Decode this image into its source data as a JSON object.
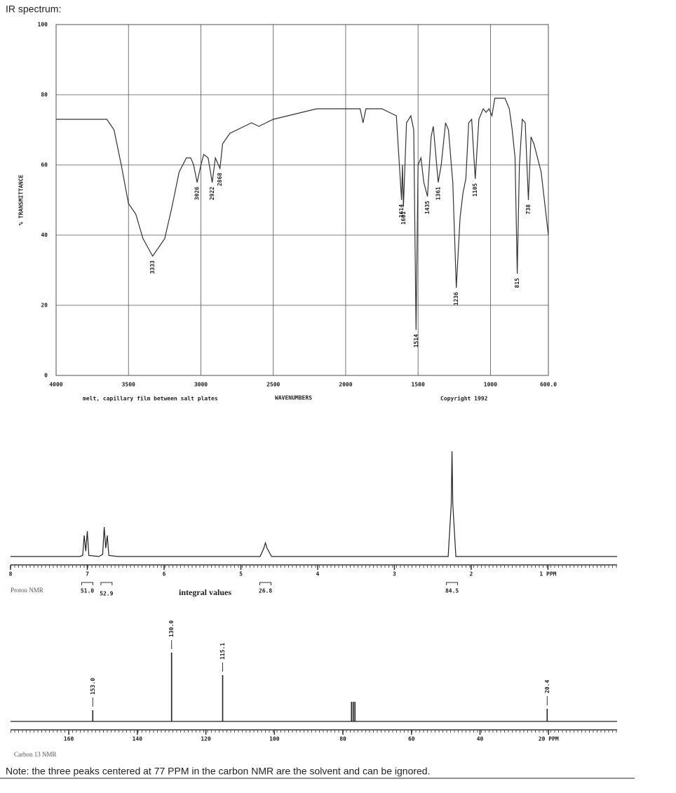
{
  "note": "Note: the three peaks centered at 77 PPM in the carbon NMR are the solvent and can be ignored.",
  "chart_data": [
    {
      "type": "line",
      "title": "IR spectrum:",
      "x_label": "WAVENUMBERS",
      "y_label": "% TRANSMITTANCE",
      "notes": [
        "melt, capillary film between salt plates",
        "Copyright 1992"
      ],
      "xlim": [
        4000,
        600
      ],
      "ylim": [
        0,
        100
      ],
      "xticks": [
        4000,
        3500,
        3000,
        2500,
        2000,
        1500,
        1000,
        {
          "value": 600,
          "label": "600.0"
        }
      ],
      "yticks": [
        0,
        20,
        40,
        60,
        80,
        100
      ],
      "grid": true,
      "color": "#333333",
      "x": [
        4000,
        3800,
        3650,
        3600,
        3550,
        3500,
        3450,
        3400,
        3333,
        3250,
        3200,
        3150,
        3100,
        3070,
        3050,
        3026,
        3000,
        2980,
        2950,
        2922,
        2900,
        2868,
        2850,
        2800,
        2700,
        2650,
        2600,
        2500,
        2400,
        2300,
        2200,
        2100,
        2000,
        1900,
        1880,
        1860,
        1750,
        1700,
        1650,
        1614,
        1608,
        1601,
        1580,
        1550,
        1530,
        1514,
        1500,
        1480,
        1460,
        1435,
        1410,
        1395,
        1361,
        1340,
        1310,
        1290,
        1260,
        1236,
        1210,
        1190,
        1170,
        1150,
        1130,
        1105,
        1080,
        1050,
        1030,
        1010,
        990,
        970,
        940,
        900,
        870,
        850,
        830,
        815,
        800,
        780,
        760,
        738,
        720,
        700,
        650,
        600
      ],
      "values": [
        73,
        73,
        73,
        70,
        60,
        49,
        46,
        39,
        34,
        39,
        48,
        58,
        62,
        62,
        60,
        55,
        60,
        63,
        62,
        55,
        62,
        59,
        66,
        69,
        71,
        72,
        71,
        73,
        74,
        75,
        76,
        76,
        76,
        76,
        72,
        76,
        76,
        75,
        74,
        50,
        60,
        48,
        72,
        74,
        70,
        13,
        60,
        62,
        55,
        51,
        68,
        71,
        55,
        60,
        72,
        70,
        55,
        25,
        45,
        52,
        56,
        72,
        73,
        56,
        73,
        76,
        75,
        76,
        74,
        79,
        79,
        79,
        76,
        70,
        62,
        29,
        60,
        73,
        72,
        50,
        68,
        66,
        58,
        40
      ],
      "peaks": [
        3333,
        3026,
        2922,
        2868,
        1614,
        1601,
        1514,
        1435,
        1361,
        1236,
        1105,
        815,
        738
      ]
    },
    {
      "type": "line",
      "title": "Proton NMR",
      "xlim": [
        8,
        0.1
      ],
      "ylim": [
        0,
        100
      ],
      "xticks": [
        8,
        7,
        6,
        5,
        4,
        3,
        2,
        {
          "value": 1,
          "label": "1 PPM"
        }
      ],
      "color": "#222222",
      "x": [
        8,
        7.1,
        7.06,
        7.04,
        7.02,
        7.0,
        6.98,
        6.85,
        6.8,
        6.78,
        6.76,
        6.74,
        6.72,
        6.6,
        4.75,
        4.7,
        4.68,
        4.66,
        4.6,
        2.3,
        2.26,
        2.25,
        2.24,
        2.2,
        0.1
      ],
      "values": [
        0,
        0,
        1,
        20,
        5,
        24,
        1,
        0,
        2,
        28,
        8,
        20,
        1,
        0,
        0,
        8,
        13,
        8,
        0,
        0,
        50,
        100,
        50,
        0,
        0
      ],
      "integrals_label": "integral values",
      "integrals": {
        "x": [
          7.0,
          6.75,
          4.68,
          2.25
        ],
        "values": [
          51.0,
          52.9,
          26.8,
          84.5
        ],
        "value_labels": [
          "51.0",
          "52.9",
          "26.8",
          "84.5"
        ]
      }
    },
    {
      "type": "stick",
      "title": "Carbon 13 NMR",
      "xlim": [
        177,
        0
      ],
      "ylim": [
        0,
        100
      ],
      "xticks": [
        160,
        140,
        120,
        100,
        80,
        60,
        40,
        {
          "value": 20,
          "label": "20 PPM"
        }
      ],
      "color": "#222222",
      "x": [
        153.0,
        130.0,
        115.1,
        77.5,
        77.0,
        76.5,
        20.4
      ],
      "values": [
        16,
        98,
        66,
        28,
        28,
        28,
        18
      ],
      "peaks": [
        153.0,
        130.0,
        115.1,
        20.4
      ],
      "peak_labels": [
        "153.0",
        "130.0",
        "115.1",
        "20.4"
      ]
    }
  ]
}
